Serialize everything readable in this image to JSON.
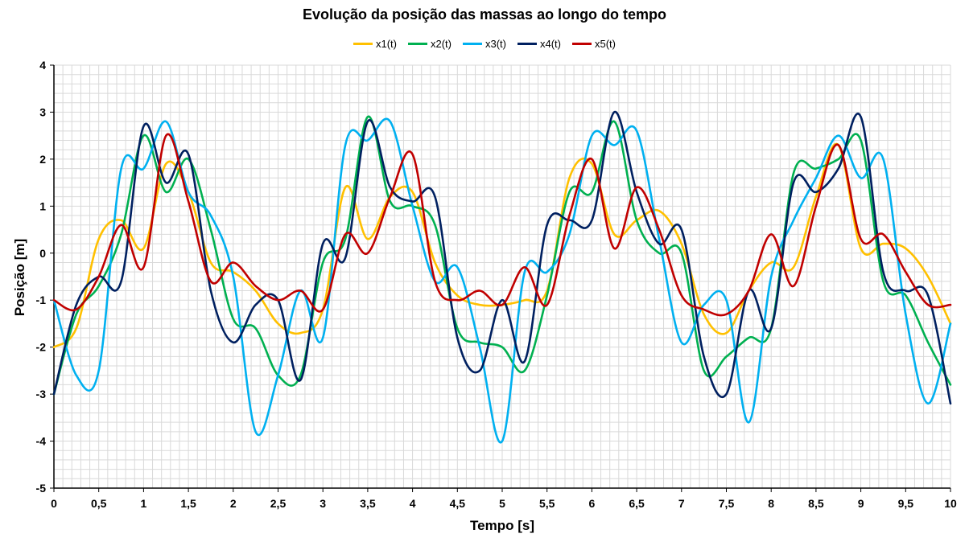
{
  "chart_data": {
    "type": "line",
    "title": "Evolução da posição das massas ao longo do tempo",
    "xlabel": "Tempo [s]",
    "ylabel": "Posição [m]",
    "xlim": [
      0,
      10
    ],
    "ylim": [
      -5,
      4
    ],
    "x_ticks": [
      "0",
      "0,5",
      "1",
      "1,5",
      "2",
      "2,5",
      "3",
      "3,5",
      "4",
      "4,5",
      "5",
      "5,5",
      "6",
      "6,5",
      "7",
      "7,5",
      "8",
      "8,5",
      "9",
      "9,5",
      "10"
    ],
    "y_ticks": [
      "4",
      "3",
      "2",
      "1",
      "0",
      "-1",
      "-2",
      "-3",
      "-4",
      "-5"
    ],
    "grid": true,
    "legend_position": "top",
    "x": [
      0,
      0.25,
      0.5,
      0.75,
      1,
      1.25,
      1.5,
      1.75,
      2,
      2.25,
      2.5,
      2.75,
      3,
      3.25,
      3.5,
      3.75,
      4,
      4.25,
      4.5,
      4.75,
      5,
      5.25,
      5.5,
      5.75,
      6,
      6.25,
      6.5,
      6.75,
      7,
      7.25,
      7.5,
      7.75,
      8,
      8.25,
      8.5,
      8.75,
      9,
      9.25,
      9.5,
      9.75,
      10
    ],
    "series": [
      {
        "name": "x1(t)",
        "color": "#FFC000",
        "values": [
          -2.0,
          -1.6,
          0.3,
          0.7,
          0.1,
          1.9,
          1.3,
          -0.2,
          -0.4,
          -0.8,
          -1.5,
          -1.7,
          -1.2,
          1.4,
          0.3,
          1.2,
          1.3,
          -0.2,
          -0.9,
          -1.1,
          -1.1,
          -1.0,
          -0.8,
          1.6,
          1.9,
          0.4,
          0.7,
          0.9,
          0.2,
          -1.3,
          -1.7,
          -0.8,
          -0.2,
          -0.3,
          1.2,
          2.3,
          0.1,
          0.2,
          0.1,
          -0.5,
          -1.5
        ]
      },
      {
        "name": "x2(t)",
        "color": "#00B050",
        "values": [
          -3.0,
          -1.3,
          -0.7,
          0.4,
          2.5,
          1.3,
          2.0,
          0.5,
          -1.4,
          -1.6,
          -2.6,
          -2.6,
          -0.2,
          0.3,
          2.9,
          1.1,
          1.0,
          0.6,
          -1.6,
          -1.9,
          -2.0,
          -2.5,
          -0.9,
          1.3,
          1.3,
          2.8,
          0.7,
          0.0,
          0.0,
          -2.5,
          -2.2,
          -1.8,
          -1.6,
          1.7,
          1.8,
          2.0,
          2.4,
          -0.6,
          -0.9,
          -1.9,
          -2.8
        ]
      },
      {
        "name": "x3(t)",
        "color": "#00B0F0",
        "values": [
          -1.0,
          -2.6,
          -2.5,
          1.8,
          1.8,
          2.8,
          1.3,
          0.8,
          -0.5,
          -3.8,
          -2.6,
          -0.8,
          -1.8,
          2.3,
          2.4,
          2.8,
          1.0,
          -0.6,
          -0.3,
          -2.0,
          -4.0,
          -0.4,
          -0.4,
          0.4,
          2.5,
          2.3,
          2.6,
          0.3,
          -1.9,
          -1.1,
          -1.0,
          -3.6,
          -0.5,
          0.7,
          1.6,
          2.5,
          1.6,
          2.0,
          -1.3,
          -3.2,
          -1.5
        ]
      },
      {
        "name": "x4(t)",
        "color": "#002060",
        "values": [
          -3.0,
          -1.1,
          -0.5,
          -0.6,
          2.7,
          1.5,
          2.1,
          -0.8,
          -1.9,
          -1.1,
          -1.0,
          -2.7,
          0.2,
          -0.1,
          2.8,
          1.4,
          1.1,
          1.2,
          -1.8,
          -2.5,
          -1.0,
          -2.3,
          0.6,
          0.7,
          0.7,
          3.0,
          1.3,
          0.2,
          0.5,
          -2.2,
          -3.0,
          -0.8,
          -1.6,
          1.5,
          1.3,
          1.8,
          2.9,
          -0.4,
          -0.8,
          -0.9,
          -3.2
        ]
      },
      {
        "name": "x5(t)",
        "color": "#C00000",
        "values": [
          -1.0,
          -1.2,
          -0.5,
          0.6,
          -0.3,
          2.5,
          1.1,
          -0.6,
          -0.2,
          -0.7,
          -1.0,
          -0.8,
          -1.2,
          0.4,
          0.0,
          1.2,
          2.1,
          -0.6,
          -1.0,
          -0.8,
          -1.1,
          -0.3,
          -1.1,
          0.8,
          2.0,
          0.1,
          1.4,
          0.5,
          -0.9,
          -1.2,
          -1.3,
          -0.8,
          0.4,
          -0.7,
          1.0,
          2.3,
          0.3,
          0.4,
          -0.4,
          -1.1,
          -1.1
        ]
      }
    ]
  }
}
